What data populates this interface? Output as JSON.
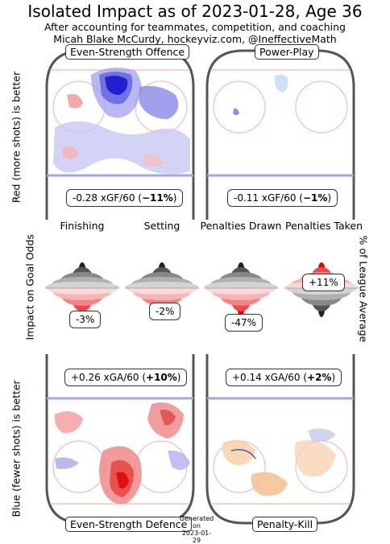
{
  "title": "Isolated Impact as of 2023-01-28, Age 36",
  "subtitle1": "After accounting for teammates, competition, and coaching",
  "subtitle2": "Micah Blake McCurdy, hockeyviz.com, @IneffectiveMath",
  "labels": {
    "left_top": "Red (more shots) is better",
    "left_middle": "Impact on Goal Odds",
    "left_bottom": "Blue (fewer shots) is better",
    "right_middle": "% of League Average"
  },
  "panels": {
    "ev_offence": {
      "label": "Even-Strength Offence",
      "stat_prefix": "-0.28 xGF/60 (",
      "stat_pct": "−11%",
      "stat_suffix": ")"
    },
    "power_play": {
      "label": "Power-Play",
      "stat_prefix": "-0.11 xGF/60 (",
      "stat_pct": "−1%",
      "stat_suffix": ")"
    },
    "ev_defence": {
      "label": "Even-Strength Defence",
      "stat_prefix": "+0.26 xGA/60 (",
      "stat_pct": "+10%",
      "stat_suffix": ")"
    },
    "penalty_kill": {
      "label": "Penalty-Kill",
      "stat_prefix": "+0.14 xGA/60 (",
      "stat_pct": "+2%",
      "stat_suffix": ")"
    }
  },
  "generated": {
    "line1": "Generated",
    "line2": "on",
    "line3": "2023-01-29"
  },
  "chart_data": {
    "type": "violin",
    "categories": [
      "Finishing",
      "Setting",
      "Penalties Drawn",
      "Penalties Taken"
    ],
    "values_label": [
      "-3%",
      "-2%",
      "-47%",
      "+11%"
    ],
    "values": [
      -3,
      -2,
      -47,
      11
    ],
    "xlabel": "",
    "ylabel": "Impact on Goal Odds"
  },
  "colors": {
    "red": "#e8393a",
    "blue": "#4b4bde",
    "orange": "#f0a050",
    "rink_line_red": "#f2a0a0",
    "rink_line_blue": "#9fa8e6",
    "rink_border": "#555555"
  }
}
